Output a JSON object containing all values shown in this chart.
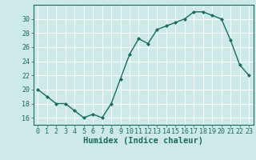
{
  "x": [
    0,
    1,
    2,
    3,
    4,
    5,
    6,
    7,
    8,
    9,
    10,
    11,
    12,
    13,
    14,
    15,
    16,
    17,
    18,
    19,
    20,
    21,
    22,
    23
  ],
  "y": [
    20,
    19,
    18,
    18,
    17,
    16,
    16.5,
    16,
    18,
    21.5,
    25,
    27.2,
    26.5,
    28.5,
    29,
    29.5,
    30,
    31,
    31,
    30.5,
    30,
    27,
    23.5,
    22
  ],
  "line_color": "#1a6b5e",
  "marker": "D",
  "marker_size": 2.0,
  "bg_color": "#cde9e8",
  "grid_color": "#b0d8d6",
  "xlabel": "Humidex (Indice chaleur)",
  "xlabel_fontsize": 7.5,
  "yticks": [
    16,
    18,
    20,
    22,
    24,
    26,
    28,
    30
  ],
  "xtick_labels": [
    "0",
    "1",
    "2",
    "3",
    "4",
    "5",
    "6",
    "7",
    "8",
    "9",
    "10",
    "11",
    "12",
    "13",
    "14",
    "15",
    "16",
    "17",
    "18",
    "19",
    "20",
    "21",
    "22",
    "23"
  ],
  "ylim": [
    15.0,
    32.0
  ],
  "xlim": [
    -0.5,
    23.5
  ],
  "tick_fontsize": 6.0,
  "tick_color": "#1a6b5e",
  "spine_color": "#1a6b5e",
  "linewidth": 1.0
}
